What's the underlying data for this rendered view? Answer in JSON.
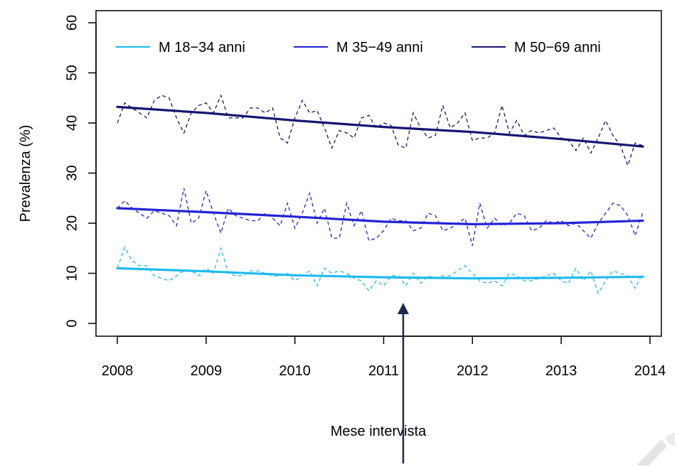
{
  "chart_data": {
    "type": "line",
    "xlabel": "Mese intervista",
    "ylabel": "Prevalenza (%)",
    "xlim": [
      2008,
      2014
    ],
    "ylim": [
      0,
      60
    ],
    "xticks": [
      2008,
      2009,
      2010,
      2011,
      2012,
      2013,
      2014
    ],
    "yticks": [
      0,
      10,
      20,
      30,
      40,
      50,
      60
    ],
    "grid": false,
    "legend_position": "top",
    "colors": {
      "series1": "#1ebbee",
      "series2": "#2323d6",
      "series3": "#161670",
      "annotation_arrow": "#1b2a4a"
    },
    "series": [
      {
        "name": "M 18−34 anni",
        "trend": {
          "x": [
            2008.0,
            2009.0,
            2010.0,
            2011.0,
            2012.0,
            2013.0,
            2013.92
          ],
          "y": [
            11.0,
            10.4,
            9.6,
            9.2,
            9.0,
            9.1,
            9.3
          ]
        },
        "monthly": {
          "x_start": 2008.0,
          "x_step": 0.08333,
          "y": [
            11.0,
            15.2,
            12.5,
            11.5,
            11.5,
            9.5,
            9.0,
            8.5,
            9.5,
            10.5,
            10.5,
            9.5,
            11.0,
            10.0,
            15.0,
            10.0,
            9.5,
            9.5,
            10.5,
            10.5,
            10.0,
            9.5,
            9.5,
            10.0,
            8.5,
            9.5,
            10.5,
            7.5,
            11.0,
            10.0,
            10.5,
            10.0,
            9.0,
            8.5,
            6.5,
            8.5,
            7.5,
            9.5,
            9.5,
            7.5,
            10.0,
            8.0,
            9.5,
            9.0,
            9.5,
            9.5,
            10.5,
            11.5,
            10.0,
            8.5,
            8.0,
            8.5,
            7.5,
            10.0,
            9.5,
            8.5,
            8.5,
            9.0,
            9.5,
            10.0,
            8.5,
            8.0,
            11.0,
            8.5,
            10.5,
            6.0,
            8.5,
            10.5,
            10.0,
            9.5,
            7.0,
            10.0
          ]
        }
      },
      {
        "name": "M 35−49 anni",
        "trend": {
          "x": [
            2008.0,
            2009.0,
            2010.0,
            2011.0,
            2012.0,
            2013.0,
            2013.92
          ],
          "y": [
            23.0,
            22.2,
            21.3,
            20.3,
            19.8,
            20.0,
            20.5
          ]
        },
        "monthly": {
          "x_start": 2008.0,
          "x_step": 0.08333,
          "y": [
            23.0,
            24.5,
            23.0,
            22.0,
            21.0,
            22.5,
            22.0,
            21.5,
            19.5,
            27.0,
            20.0,
            21.0,
            26.5,
            22.0,
            18.0,
            23.0,
            21.5,
            21.0,
            20.5,
            20.5,
            22.0,
            21.0,
            19.5,
            24.0,
            19.0,
            22.0,
            26.0,
            20.0,
            23.0,
            17.0,
            17.0,
            24.0,
            19.5,
            22.5,
            16.5,
            17.0,
            18.5,
            21.0,
            20.5,
            20.5,
            18.5,
            19.0,
            22.0,
            21.5,
            18.5,
            19.0,
            20.0,
            21.0,
            15.5,
            24.0,
            19.0,
            21.0,
            19.5,
            20.0,
            22.0,
            21.5,
            18.5,
            19.0,
            20.5,
            20.0,
            20.5,
            19.5,
            20.0,
            18.5,
            17.0,
            20.0,
            22.0,
            24.0,
            23.5,
            21.5,
            17.5,
            22.0
          ]
        }
      },
      {
        "name": "M 50−69 anni",
        "trend": {
          "x": [
            2008.0,
            2009.0,
            2010.0,
            2011.0,
            2012.0,
            2013.0,
            2013.92
          ],
          "y": [
            43.2,
            42.0,
            40.5,
            39.2,
            38.2,
            36.8,
            35.3
          ]
        },
        "monthly": {
          "x_start": 2008.0,
          "x_step": 0.08333,
          "y": [
            40.0,
            44.0,
            43.0,
            42.0,
            41.0,
            44.5,
            45.5,
            45.0,
            41.0,
            38.0,
            42.0,
            43.5,
            44.0,
            42.0,
            45.5,
            41.0,
            41.0,
            41.0,
            43.0,
            43.0,
            42.0,
            43.0,
            37.0,
            36.0,
            41.0,
            44.5,
            42.0,
            42.5,
            39.0,
            35.0,
            38.5,
            38.0,
            37.0,
            41.0,
            41.5,
            39.0,
            40.0,
            39.5,
            35.5,
            35.0,
            42.0,
            39.0,
            37.0,
            37.5,
            43.5,
            39.0,
            40.0,
            42.0,
            36.5,
            37.0,
            37.0,
            38.0,
            43.5,
            38.0,
            40.5,
            37.5,
            38.5,
            38.0,
            38.5,
            39.0,
            37.0,
            36.5,
            34.5,
            37.0,
            34.0,
            37.0,
            40.5,
            37.5,
            35.5,
            31.5,
            36.0,
            35.5
          ]
        }
      }
    ]
  }
}
